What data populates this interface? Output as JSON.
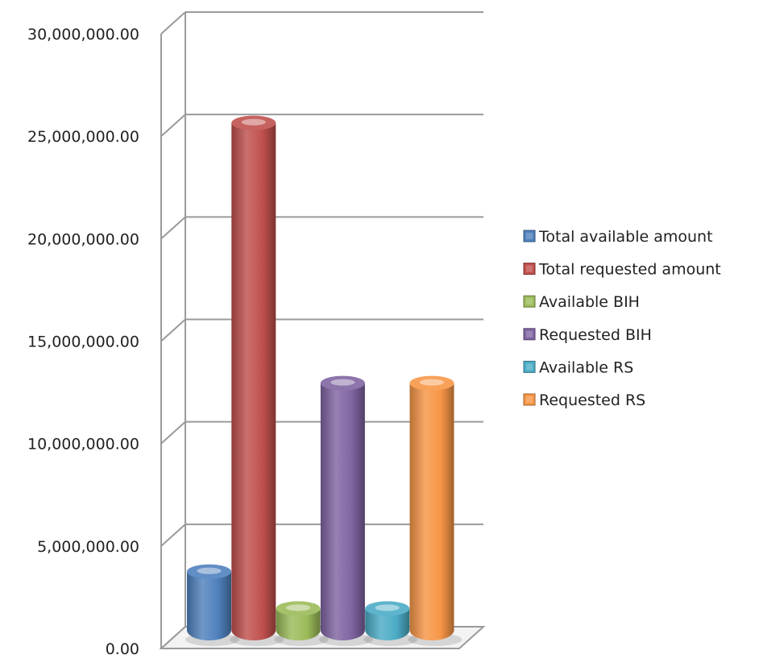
{
  "chart_data": {
    "type": "bar",
    "three_d": true,
    "categories": [
      ""
    ],
    "series": [
      {
        "name": "Total available amount",
        "values": [
          3200000
        ],
        "color": "#4F81BD"
      },
      {
        "name": "Total requested amount",
        "values": [
          25100000
        ],
        "color": "#C0504D"
      },
      {
        "name": "Available BIH",
        "values": [
          1400000
        ],
        "color": "#9BBB59"
      },
      {
        "name": "Requested BIH",
        "values": [
          12400000
        ],
        "color": "#8064A2"
      },
      {
        "name": "Available RS",
        "values": [
          1400000
        ],
        "color": "#4BACC6"
      },
      {
        "name": "Requested RS",
        "values": [
          12400000
        ],
        "color": "#F79646"
      }
    ],
    "y_ticks": [
      "0.00",
      "5,000,000.00",
      "10,000,000.00",
      "15,000,000.00",
      "20,000,000.00",
      "25,000,000.00",
      "30,000,000.00"
    ],
    "ylim": [
      0,
      30000000
    ],
    "grid": true,
    "legend_position": "right"
  }
}
